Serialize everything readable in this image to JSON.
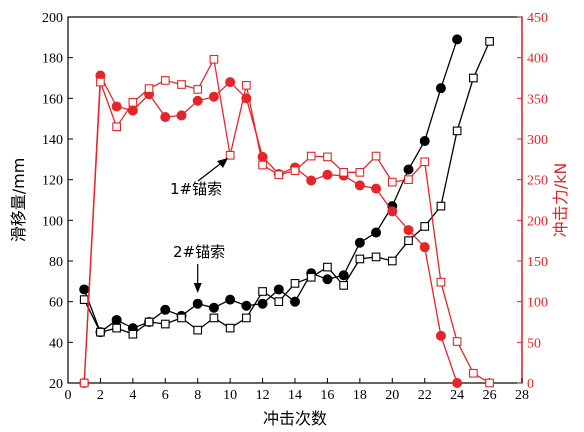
{
  "chart_data": {
    "type": "line",
    "xlabel": "冲击次数",
    "ylabel": "滑移量/mm",
    "y2label": "冲击力/kN",
    "xlim": [
      0,
      28
    ],
    "ylim": [
      20,
      200
    ],
    "y2lim": [
      0,
      450
    ],
    "xticks": [
      "0",
      "2",
      "4",
      "6",
      "8",
      "10",
      "12",
      "14",
      "16",
      "18",
      "20",
      "22",
      "24",
      "26",
      "28"
    ],
    "yticks": [
      "20",
      "40",
      "60",
      "80",
      "100",
      "120",
      "140",
      "160",
      "180",
      "200"
    ],
    "y2ticks": [
      "0",
      "50",
      "100",
      "150",
      "200",
      "250",
      "300",
      "350",
      "400",
      "450"
    ],
    "colors": {
      "left": "#000000",
      "right": "#e3262b"
    },
    "annotations": [
      {
        "text": "1#锚索",
        "x": 9.8,
        "y": 120
      },
      {
        "text": "2#锚索",
        "x": 8.2,
        "y": 60
      }
    ],
    "series": [
      {
        "axis": "left",
        "marker": "filled-circle",
        "color": "#000000",
        "points": [
          [
            1,
            66
          ],
          [
            2,
            45
          ],
          [
            3,
            51
          ],
          [
            4,
            47
          ],
          [
            5,
            50
          ],
          [
            6,
            56
          ],
          [
            7,
            53
          ],
          [
            8,
            59
          ],
          [
            9,
            57
          ],
          [
            10,
            61
          ],
          [
            11,
            58
          ],
          [
            12,
            59
          ],
          [
            13,
            66
          ],
          [
            14,
            60
          ],
          [
            15,
            74
          ],
          [
            16,
            71
          ],
          [
            17,
            73
          ],
          [
            18,
            89
          ],
          [
            19,
            94
          ],
          [
            20,
            107
          ],
          [
            21,
            125
          ],
          [
            22,
            139
          ],
          [
            23,
            165
          ],
          [
            24,
            189
          ]
        ]
      },
      {
        "axis": "left",
        "marker": "open-square",
        "color": "#000000",
        "points": [
          [
            1,
            61
          ],
          [
            2,
            45
          ],
          [
            3,
            47
          ],
          [
            4,
            44
          ],
          [
            5,
            50
          ],
          [
            6,
            49
          ],
          [
            7,
            52
          ],
          [
            8,
            46
          ],
          [
            9,
            52
          ],
          [
            10,
            47
          ],
          [
            11,
            52
          ],
          [
            12,
            65
          ],
          [
            13,
            60
          ],
          [
            14,
            69
          ],
          [
            15,
            72
          ],
          [
            16,
            77
          ],
          [
            17,
            68
          ],
          [
            18,
            81
          ],
          [
            19,
            82
          ],
          [
            20,
            80
          ],
          [
            21,
            90
          ],
          [
            22,
            97
          ],
          [
            23,
            107
          ],
          [
            24,
            144
          ],
          [
            25,
            170
          ],
          [
            26,
            188
          ]
        ]
      },
      {
        "axis": "right",
        "marker": "filled-circle",
        "color": "#e3262b",
        "points": [
          [
            1,
            0
          ],
          [
            2,
            378
          ],
          [
            3,
            340
          ],
          [
            4,
            335
          ],
          [
            5,
            355
          ],
          [
            6,
            327
          ],
          [
            7,
            329
          ],
          [
            8,
            347
          ],
          [
            9,
            352
          ],
          [
            10,
            370
          ],
          [
            11,
            350
          ],
          [
            12,
            278
          ],
          [
            13,
            257
          ],
          [
            14,
            265
          ],
          [
            15,
            249
          ],
          [
            16,
            256
          ],
          [
            17,
            255
          ],
          [
            18,
            243
          ],
          [
            19,
            239
          ],
          [
            20,
            211
          ],
          [
            21,
            188
          ],
          [
            22,
            167
          ],
          [
            23,
            58
          ],
          [
            24,
            0
          ]
        ]
      },
      {
        "axis": "right",
        "marker": "open-square",
        "color": "#e3262b",
        "points": [
          [
            1,
            0
          ],
          [
            2,
            370
          ],
          [
            3,
            315
          ],
          [
            4,
            345
          ],
          [
            5,
            362
          ],
          [
            6,
            372
          ],
          [
            7,
            367
          ],
          [
            8,
            361
          ],
          [
            9,
            398
          ],
          [
            10,
            280
          ],
          [
            11,
            366
          ],
          [
            12,
            268
          ],
          [
            13,
            256
          ],
          [
            14,
            261
          ],
          [
            15,
            279
          ],
          [
            16,
            278
          ],
          [
            17,
            259
          ],
          [
            18,
            259
          ],
          [
            19,
            279
          ],
          [
            20,
            247
          ],
          [
            21,
            250
          ],
          [
            22,
            272
          ],
          [
            23,
            124
          ],
          [
            24,
            51
          ],
          [
            25,
            12
          ],
          [
            26,
            0
          ]
        ]
      }
    ]
  }
}
